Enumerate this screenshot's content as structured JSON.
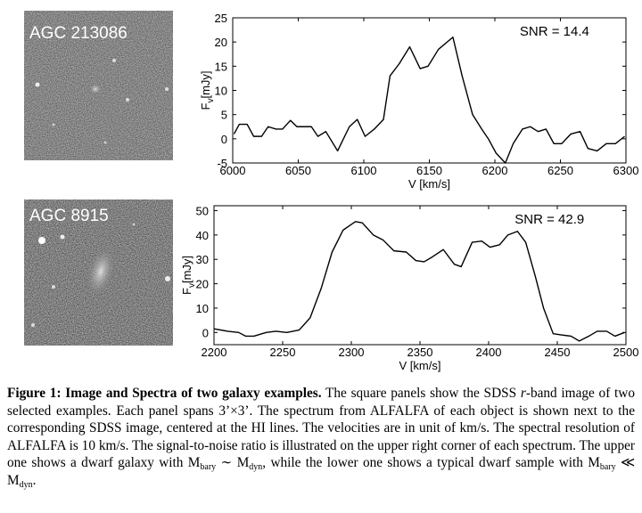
{
  "images": [
    {
      "label": "AGC 213086"
    },
    {
      "label": "AGC 8915"
    }
  ],
  "chart_data": [
    {
      "type": "line",
      "xlabel": "V [km/s]",
      "ylabel": [
        "F",
        "v",
        "[mJy]"
      ],
      "annotation": "SNR = 14.4",
      "x": [
        6001,
        6005,
        6011,
        6016,
        6022,
        6027,
        6033,
        6038,
        6044,
        6049,
        6054,
        6060,
        6065,
        6071,
        6080,
        6089,
        6095,
        6101,
        6108,
        6115,
        6120,
        6127,
        6135,
        6143,
        6149,
        6157,
        6168,
        6175,
        6183,
        6190,
        6195,
        6201,
        6208,
        6214,
        6221,
        6227,
        6233,
        6239,
        6245,
        6251,
        6258,
        6265,
        6271,
        6278,
        6285,
        6292,
        6299
      ],
      "series": [
        {
          "color": "#000000",
          "values": [
            1,
            3,
            3,
            0.5,
            0.5,
            2.5,
            2,
            2,
            3.8,
            2.5,
            2.5,
            2.5,
            0.5,
            1.5,
            -2.5,
            2.5,
            4,
            0.5,
            2,
            4,
            13,
            15.5,
            19,
            14.5,
            15,
            18.5,
            21,
            13,
            5,
            2,
            0,
            -3,
            -5,
            -1,
            2,
            2.5,
            1.5,
            2,
            -1,
            -1,
            1,
            1.5,
            -2,
            -2.5,
            -1,
            -1,
            0.5
          ]
        }
      ],
      "xlim": [
        6000,
        6300
      ],
      "xticks": [
        6000,
        6050,
        6100,
        6150,
        6200,
        6250,
        6300
      ],
      "ylim": [
        -5,
        25
      ],
      "yticks": [
        -5,
        0,
        5,
        10,
        15,
        20,
        25
      ]
    },
    {
      "type": "line",
      "xlabel": "V [km/s]",
      "ylabel": [
        "F",
        "v",
        "[mJy]"
      ],
      "annotation": "SNR = 42.9",
      "x": [
        2200,
        2210,
        2218,
        2223,
        2229,
        2238,
        2245,
        2253,
        2262,
        2270,
        2278,
        2286,
        2294,
        2303,
        2308,
        2316,
        2323,
        2331,
        2340,
        2347,
        2353,
        2359,
        2367,
        2375,
        2380,
        2388,
        2395,
        2401,
        2408,
        2414,
        2421,
        2427,
        2434,
        2440,
        2447,
        2453,
        2460,
        2466,
        2473,
        2479,
        2486,
        2492,
        2499
      ],
      "series": [
        {
          "color": "#000000",
          "values": [
            1.5,
            0.5,
            0,
            -1.5,
            -1.5,
            0,
            0.5,
            0,
            1,
            6,
            18,
            33,
            42,
            45.5,
            45,
            40,
            38,
            33.5,
            33,
            29.5,
            29,
            31,
            34,
            28,
            27,
            37,
            37.5,
            35,
            36,
            40,
            41.5,
            37,
            23,
            10,
            -0.5,
            -1,
            -1.5,
            -3.5,
            -1.5,
            0.5,
            0.5,
            -1.5,
            0
          ]
        }
      ],
      "xlim": [
        2200,
        2500
      ],
      "xticks": [
        2200,
        2250,
        2300,
        2350,
        2400,
        2450,
        2500
      ],
      "ylim": [
        -5,
        52
      ],
      "yticks": [
        0,
        10,
        20,
        30,
        40,
        50
      ]
    }
  ],
  "caption": {
    "title": "Figure 1: Image and Spectra of two galaxy examples.",
    "segments": [
      " The square panels show the SDSS ",
      "r",
      "-band image of two selected examples. Each panel spans 3’×3’. The spectrum from ALFALFA of each object is shown next to the corresponding SDSS image, centered at the HI lines. The velocities are in unit of km/s. The spectral resolution of ALFALFA is 10 km/s. The signal-to-noise ratio is illustrated on the upper right corner of each spectrum. The upper one shows a dwarf galaxy with ",
      "M",
      "bary",
      " ∼ ",
      "M",
      "dyn",
      ", while the lower one shows a typical dwarf sample with ",
      "M",
      "bary",
      " ≪ ",
      "M",
      "dyn",
      "."
    ]
  }
}
